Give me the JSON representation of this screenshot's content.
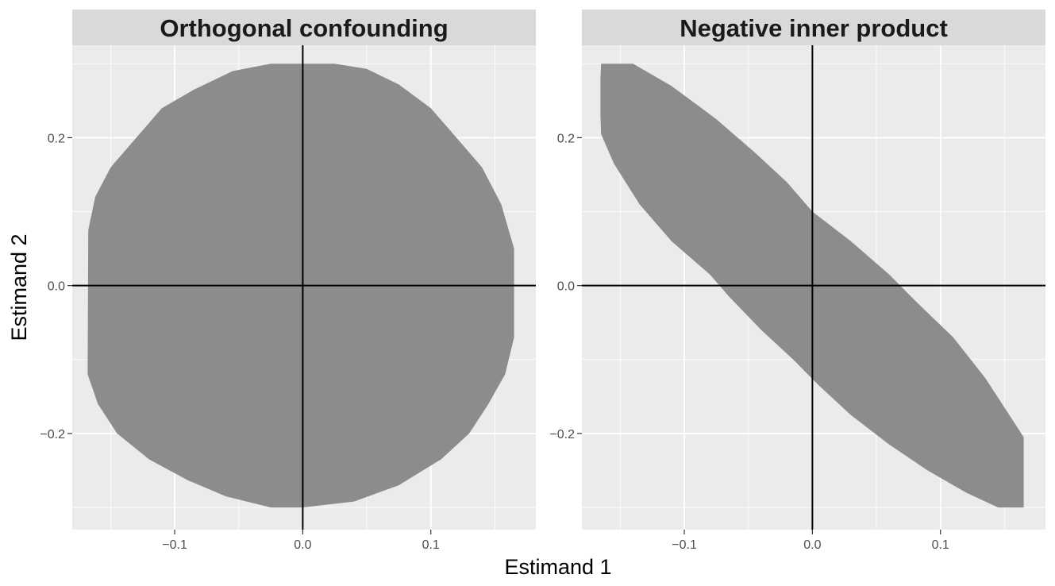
{
  "chart_data": {
    "type": "area",
    "xlabel": "Estimand 1",
    "ylabel": "Estimand 2",
    "xlim": [
      -0.18,
      0.182
    ],
    "ylim": [
      -0.33,
      0.325
    ],
    "x_breaks": [
      -0.1,
      0.0,
      0.1
    ],
    "x_tick_labels": [
      "−0.1",
      "0.0",
      "0.1"
    ],
    "y_breaks": [
      -0.2,
      0.0,
      0.2
    ],
    "y_tick_labels": [
      "−0.2",
      "0.0",
      "0.2"
    ],
    "x_minor_breaks": [
      -0.15,
      -0.05,
      0.05,
      0.15
    ],
    "y_minor_breaks": [
      -0.3,
      -0.1,
      0.1,
      0.3
    ],
    "reference_lines": {
      "x": 0,
      "y": 0
    },
    "fill_color": "#8c8c8c",
    "panel_background": "#ebebeb",
    "strip_background": "#d9d9d9",
    "panels": [
      {
        "title": "Orthogonal confounding",
        "region": [
          [
            -0.025,
            0.3
          ],
          [
            0.025,
            0.3
          ],
          [
            0.05,
            0.293
          ],
          [
            0.075,
            0.272
          ],
          [
            0.1,
            0.24
          ],
          [
            0.12,
            0.2
          ],
          [
            0.14,
            0.16
          ],
          [
            0.155,
            0.11
          ],
          [
            0.165,
            0.05
          ],
          [
            0.165,
            -0.07
          ],
          [
            0.158,
            -0.12
          ],
          [
            0.145,
            -0.16
          ],
          [
            0.13,
            -0.2
          ],
          [
            0.108,
            -0.235
          ],
          [
            0.075,
            -0.27
          ],
          [
            0.04,
            -0.292
          ],
          [
            0.0,
            -0.3
          ],
          [
            -0.025,
            -0.3
          ],
          [
            -0.06,
            -0.285
          ],
          [
            -0.09,
            -0.263
          ],
          [
            -0.12,
            -0.235
          ],
          [
            -0.145,
            -0.2
          ],
          [
            -0.16,
            -0.16
          ],
          [
            -0.168,
            -0.12
          ],
          [
            -0.1675,
            0.075
          ],
          [
            -0.162,
            0.12
          ],
          [
            -0.15,
            0.16
          ],
          [
            -0.13,
            0.2
          ],
          [
            -0.11,
            0.24
          ],
          [
            -0.085,
            0.265
          ],
          [
            -0.055,
            0.29
          ]
        ]
      },
      {
        "title": "Negative inner product",
        "region": [
          [
            -0.165,
            0.3
          ],
          [
            -0.14,
            0.3
          ],
          [
            -0.11,
            0.27
          ],
          [
            -0.075,
            0.225
          ],
          [
            -0.045,
            0.18
          ],
          [
            -0.02,
            0.14
          ],
          [
            0.0,
            0.1
          ],
          [
            0.03,
            0.06
          ],
          [
            0.06,
            0.015
          ],
          [
            0.08,
            -0.02
          ],
          [
            0.11,
            -0.07
          ],
          [
            0.135,
            -0.125
          ],
          [
            0.15,
            -0.165
          ],
          [
            0.165,
            -0.205
          ],
          [
            0.165,
            -0.3
          ],
          [
            0.145,
            -0.3
          ],
          [
            0.12,
            -0.28
          ],
          [
            0.09,
            -0.25
          ],
          [
            0.06,
            -0.215
          ],
          [
            0.03,
            -0.175
          ],
          [
            0.005,
            -0.135
          ],
          [
            -0.015,
            -0.1
          ],
          [
            -0.04,
            -0.06
          ],
          [
            -0.065,
            -0.015
          ],
          [
            -0.08,
            0.015
          ],
          [
            -0.11,
            0.06
          ],
          [
            -0.135,
            0.11
          ],
          [
            -0.155,
            0.165
          ],
          [
            -0.165,
            0.205
          ],
          [
            -0.1655,
            0.23
          ],
          [
            -0.1655,
            0.28
          ]
        ]
      }
    ]
  }
}
